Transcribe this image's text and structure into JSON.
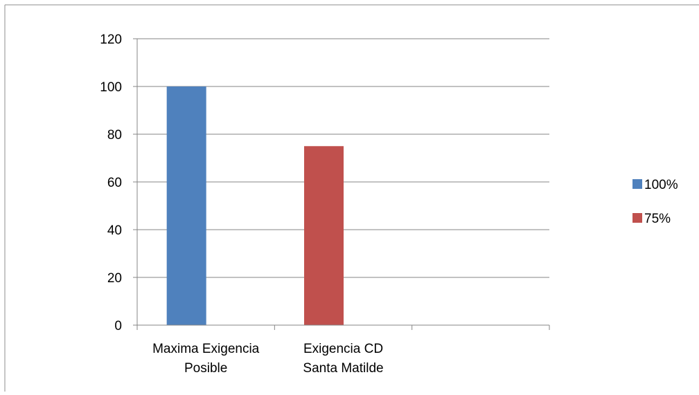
{
  "chart_data": {
    "type": "bar",
    "categories": [
      [
        "Maxima Exigencia",
        "Posible"
      ],
      [
        "Exigencia CD",
        "Santa Matilde"
      ],
      [
        ""
      ]
    ],
    "series": [
      {
        "name": "100%",
        "color": "#4f81bd",
        "values": [
          100,
          null,
          null
        ]
      },
      {
        "name": "75%",
        "color": "#c0504d",
        "values": [
          null,
          75,
          null
        ]
      }
    ],
    "ylim": [
      0,
      120
    ],
    "yticks": [
      0,
      20,
      40,
      60,
      80,
      100,
      120
    ],
    "grid": true,
    "legend_position": "right",
    "title": "",
    "xlabel": "",
    "ylabel": ""
  }
}
